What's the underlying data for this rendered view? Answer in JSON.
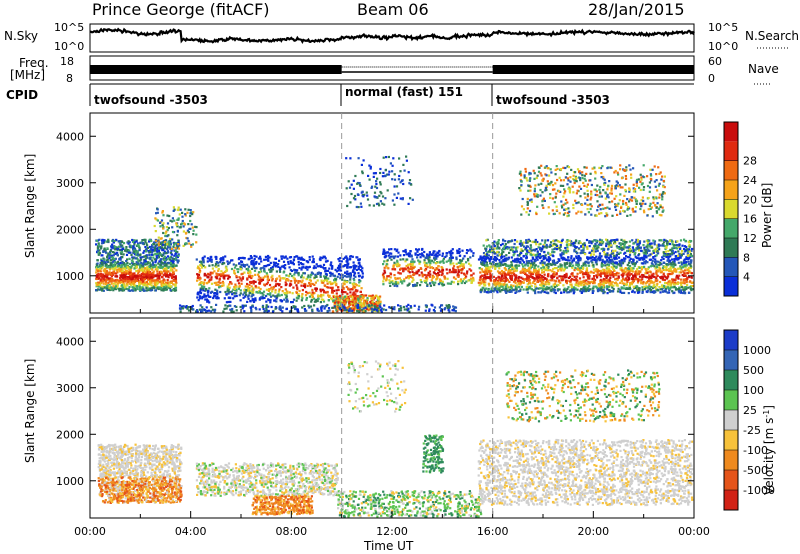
{
  "header": {
    "station": "Prince George (fitACF)",
    "beam": "Beam 06",
    "date": "28/Jan/2015"
  },
  "left_labels": {
    "nsky": "N.Sky",
    "freq_1": "Freq.",
    "freq_2": "[MHz]",
    "cpid": "CPID"
  },
  "right_labels": {
    "nsearch": "N.Search",
    "nave": "Nave"
  },
  "colors": {
    "power": [
      "#0a2fd8",
      "#2457b8",
      "#2f7a55",
      "#44a86a",
      "#d9d92f",
      "#f5a31a",
      "#ef6a12",
      "#e02a10",
      "#c90d0d"
    ],
    "velocity": [
      "#1c3cc8",
      "#3465b5",
      "#2e8a5c",
      "#5cc451",
      "#cfcfcf",
      "#f7c23b",
      "#ef8a1f",
      "#e5541a",
      "#d12216"
    ]
  },
  "chart_data": [
    {
      "type": "line",
      "panel": "noise",
      "series": [
        {
          "name": "N.Sky"
        },
        {
          "name": "N.Search"
        }
      ],
      "y_ticks_left": [
        "10^5",
        "10^0"
      ],
      "y_ticks_right": [
        "10^5",
        "10^0"
      ],
      "note_scale": "log"
    },
    {
      "type": "line",
      "panel": "frequency-nave",
      "y_ticks_left": [
        "18",
        "8"
      ],
      "y_ticks_right": [
        "60",
        "0"
      ]
    },
    {
      "type": "table",
      "panel": "cpid",
      "segments": [
        {
          "label": "twofsound -3503",
          "start_h": 0,
          "end_h": 10
        },
        {
          "label": "normal (fast) 151",
          "start_h": 10,
          "end_h": 16
        },
        {
          "label": "twofsound -3503",
          "start_h": 16,
          "end_h": 24
        }
      ]
    },
    {
      "type": "heatmap",
      "panel": "power",
      "xlabel": "",
      "ylabel": "Slant Range [km]",
      "ylim": [
        200,
        4500
      ],
      "y_ticks": [
        1000,
        2000,
        3000,
        4000
      ],
      "xlim": [
        0,
        24
      ],
      "colorbar_label": "Power [dB]",
      "colorbar_ticks": [
        "4",
        "8",
        "12",
        "16",
        "20",
        "24",
        "28"
      ]
    },
    {
      "type": "heatmap",
      "panel": "velocity",
      "xlabel": "Time UT",
      "ylabel": "Slant Range [km]",
      "ylim": [
        200,
        4500
      ],
      "y_ticks": [
        1000,
        2000,
        3000,
        4000
      ],
      "xlim": [
        0,
        24
      ],
      "x_ticks": [
        "00:00",
        "04:00",
        "08:00",
        "12:00",
        "16:00",
        "20:00",
        "00:00"
      ],
      "colorbar_label": "Velocity [m s",
      "colorbar_unit_exp": "-1",
      "colorbar_unit_close": "]",
      "colorbar_ticks": [
        "1000",
        "500",
        "100",
        "25",
        "-25",
        "-100",
        "-500",
        "-1000"
      ]
    }
  ]
}
